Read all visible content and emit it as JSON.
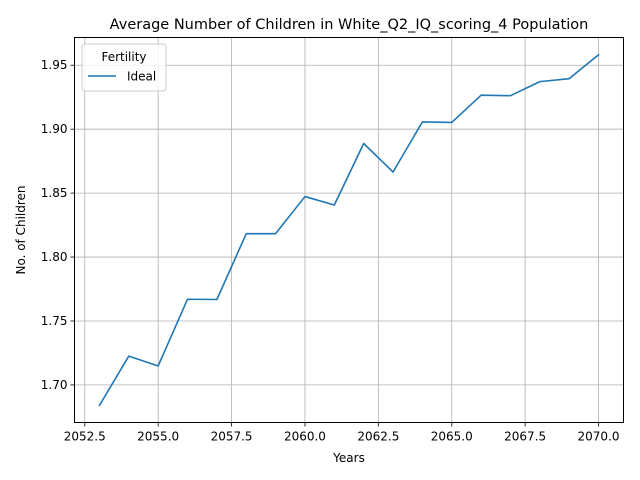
{
  "chart_data": {
    "type": "line",
    "title": "Average Number of Children in White_Q2_IQ_scoring_4 Population",
    "xlabel": "Years",
    "ylabel": "No. of Children",
    "xlim": [
      2052.15,
      2070.85
    ],
    "ylim": [
      1.6706,
      1.9717
    ],
    "xticks": [
      2052.5,
      2055.0,
      2057.5,
      2060.0,
      2062.5,
      2065.0,
      2067.5,
      2070.0
    ],
    "xtick_labels": [
      "2052.5",
      "2055.0",
      "2057.5",
      "2060.0",
      "2062.5",
      "2065.0",
      "2067.5",
      "2070.0"
    ],
    "yticks": [
      1.7,
      1.75,
      1.8,
      1.85,
      1.9,
      1.95
    ],
    "ytick_labels": [
      "1.70",
      "1.75",
      "1.80",
      "1.85",
      "1.90",
      "1.95"
    ],
    "grid": true,
    "legend": {
      "title": "Fertility",
      "placement": "top-left"
    },
    "series": [
      {
        "name": "Ideal",
        "color": "#1f77b4",
        "x": [
          2053,
          2054,
          2055,
          2056,
          2057,
          2058,
          2059,
          2060,
          2061,
          2062,
          2063,
          2064,
          2065,
          2066,
          2067,
          2068,
          2069,
          2070
        ],
        "y": [
          1.684,
          1.7225,
          1.7148,
          1.767,
          1.7668,
          1.8183,
          1.8183,
          1.8473,
          1.8407,
          1.8888,
          1.8665,
          1.9057,
          1.9053,
          1.9266,
          1.9262,
          1.9372,
          1.9395,
          1.9582
        ]
      }
    ]
  }
}
